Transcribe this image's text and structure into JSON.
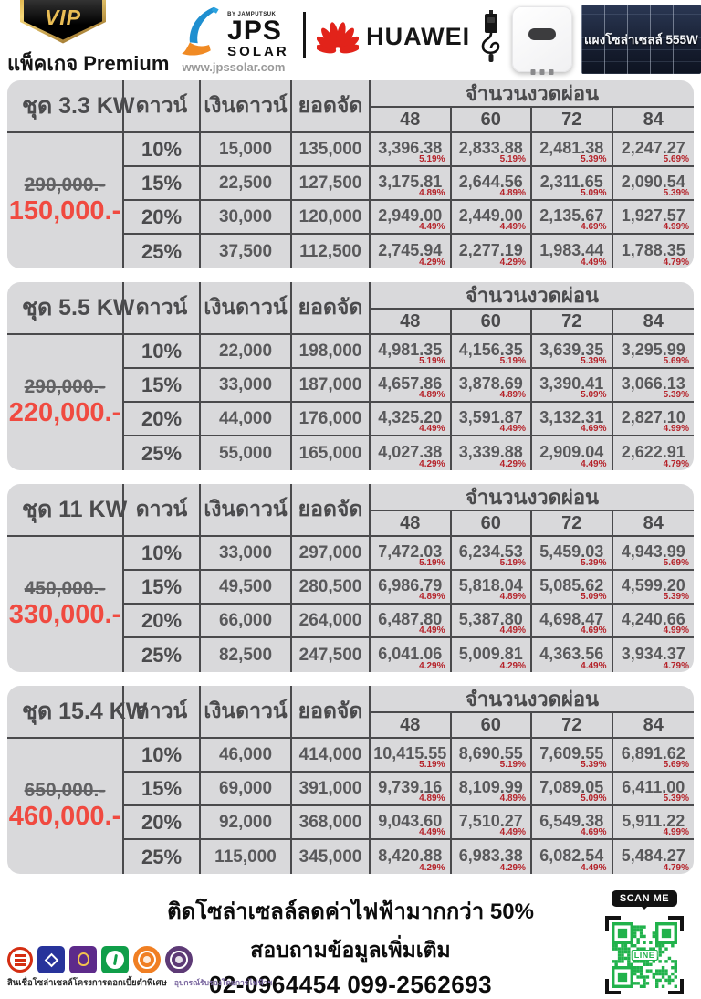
{
  "header": {
    "vip_badge": "VIP",
    "package_label": "แพ็คเกจ Premium",
    "jps": {
      "by": "BY JAMPUTSUK",
      "name": "JPS",
      "sub": "SOLAR",
      "website": "www.jpssolar.com"
    },
    "huawei": "HUAWEI",
    "panel_caption": "แผงโซล่าเซลล์ 555W"
  },
  "table_headers": {
    "down_pct": "ดาวน์",
    "down_amount": "เงินดาวน์",
    "financed": "ยอดจัด",
    "installments": "จำนวนงวดผ่อน",
    "terms": [
      "48",
      "60",
      "72",
      "84"
    ]
  },
  "tables": [
    {
      "name": "ชุด 3.3 KW",
      "old_price": "290,000.-",
      "price": "150,000.-",
      "rows": [
        {
          "down": "10%",
          "down_amount": "15,000",
          "financed": "135,000",
          "payments": [
            {
              "amount": "3,396.38",
              "rate": "5.19%"
            },
            {
              "amount": "2,833.88",
              "rate": "5.19%"
            },
            {
              "amount": "2,481.38",
              "rate": "5.39%"
            },
            {
              "amount": "2,247.27",
              "rate": "5.69%"
            }
          ]
        },
        {
          "down": "15%",
          "down_amount": "22,500",
          "financed": "127,500",
          "payments": [
            {
              "amount": "3,175.81",
              "rate": "4.89%"
            },
            {
              "amount": "2,644.56",
              "rate": "4.89%"
            },
            {
              "amount": "2,311.65",
              "rate": "5.09%"
            },
            {
              "amount": "2,090.54",
              "rate": "5.39%"
            }
          ]
        },
        {
          "down": "20%",
          "down_amount": "30,000",
          "financed": "120,000",
          "payments": [
            {
              "amount": "2,949.00",
              "rate": "4.49%"
            },
            {
              "amount": "2,449.00",
              "rate": "4.49%"
            },
            {
              "amount": "2,135.67",
              "rate": "4.69%"
            },
            {
              "amount": "1,927.57",
              "rate": "4.99%"
            }
          ]
        },
        {
          "down": "25%",
          "down_amount": "37,500",
          "financed": "112,500",
          "payments": [
            {
              "amount": "2,745.94",
              "rate": "4.29%"
            },
            {
              "amount": "2,277.19",
              "rate": "4.29%"
            },
            {
              "amount": "1,983.44",
              "rate": "4.49%"
            },
            {
              "amount": "1,788.35",
              "rate": "4.79%"
            }
          ]
        }
      ]
    },
    {
      "name": "ชุด 5.5 KW",
      "old_price": "290,000.-",
      "price": "220,000.-",
      "rows": [
        {
          "down": "10%",
          "down_amount": "22,000",
          "financed": "198,000",
          "payments": [
            {
              "amount": "4,981.35",
              "rate": "5.19%"
            },
            {
              "amount": "4,156.35",
              "rate": "5.19%"
            },
            {
              "amount": "3,639.35",
              "rate": "5.39%"
            },
            {
              "amount": "3,295.99",
              "rate": "5.69%"
            }
          ]
        },
        {
          "down": "15%",
          "down_amount": "33,000",
          "financed": "187,000",
          "payments": [
            {
              "amount": "4,657.86",
              "rate": "4.89%"
            },
            {
              "amount": "3,878.69",
              "rate": "4.89%"
            },
            {
              "amount": "3,390.41",
              "rate": "5.09%"
            },
            {
              "amount": "3,066.13",
              "rate": "5.39%"
            }
          ]
        },
        {
          "down": "20%",
          "down_amount": "44,000",
          "financed": "176,000",
          "payments": [
            {
              "amount": "4,325.20",
              "rate": "4.49%"
            },
            {
              "amount": "3,591.87",
              "rate": "4.49%"
            },
            {
              "amount": "3,132.31",
              "rate": "4.69%"
            },
            {
              "amount": "2,827.10",
              "rate": "4.99%"
            }
          ]
        },
        {
          "down": "25%",
          "down_amount": "55,000",
          "financed": "165,000",
          "payments": [
            {
              "amount": "4,027.38",
              "rate": "4.29%"
            },
            {
              "amount": "3,339.88",
              "rate": "4.29%"
            },
            {
              "amount": "2,909.04",
              "rate": "4.49%"
            },
            {
              "amount": "2,622.91",
              "rate": "4.79%"
            }
          ]
        }
      ]
    },
    {
      "name": "ชุด 11 KW",
      "old_price": "450,000.-",
      "price": "330,000.-",
      "rows": [
        {
          "down": "10%",
          "down_amount": "33,000",
          "financed": "297,000",
          "payments": [
            {
              "amount": "7,472.03",
              "rate": "5.19%"
            },
            {
              "amount": "6,234.53",
              "rate": "5.19%"
            },
            {
              "amount": "5,459.03",
              "rate": "5.39%"
            },
            {
              "amount": "4,943.99",
              "rate": "5.69%"
            }
          ]
        },
        {
          "down": "15%",
          "down_amount": "49,500",
          "financed": "280,500",
          "payments": [
            {
              "amount": "6,986.79",
              "rate": "4.89%"
            },
            {
              "amount": "5,818.04",
              "rate": "4.89%"
            },
            {
              "amount": "5,085.62",
              "rate": "5.09%"
            },
            {
              "amount": "4,599.20",
              "rate": "5.39%"
            }
          ]
        },
        {
          "down": "20%",
          "down_amount": "66,000",
          "financed": "264,000",
          "payments": [
            {
              "amount": "6,487.80",
              "rate": "4.49%"
            },
            {
              "amount": "5,387.80",
              "rate": "4.49%"
            },
            {
              "amount": "4,698.47",
              "rate": "4.69%"
            },
            {
              "amount": "4,240.66",
              "rate": "4.99%"
            }
          ]
        },
        {
          "down": "25%",
          "down_amount": "82,500",
          "financed": "247,500",
          "payments": [
            {
              "amount": "6,041.06",
              "rate": "4.29%"
            },
            {
              "amount": "5,009.81",
              "rate": "4.29%"
            },
            {
              "amount": "4,363.56",
              "rate": "4.49%"
            },
            {
              "amount": "3,934.37",
              "rate": "4.79%"
            }
          ]
        }
      ]
    },
    {
      "name": "ชุด 15.4 KW",
      "old_price": "650,000.-",
      "price": "460,000.-",
      "rows": [
        {
          "down": "10%",
          "down_amount": "46,000",
          "financed": "414,000",
          "payments": [
            {
              "amount": "10,415.55",
              "rate": "5.19%"
            },
            {
              "amount": "8,690.55",
              "rate": "5.19%"
            },
            {
              "amount": "7,609.55",
              "rate": "5.39%"
            },
            {
              "amount": "6,891.62",
              "rate": "5.69%"
            }
          ]
        },
        {
          "down": "15%",
          "down_amount": "69,000",
          "financed": "391,000",
          "payments": [
            {
              "amount": "9,739.16",
              "rate": "4.89%"
            },
            {
              "amount": "8,109.99",
              "rate": "4.89%"
            },
            {
              "amount": "7,089.05",
              "rate": "5.09%"
            },
            {
              "amount": "6,411.00",
              "rate": "5.39%"
            }
          ]
        },
        {
          "down": "20%",
          "down_amount": "92,000",
          "financed": "368,000",
          "payments": [
            {
              "amount": "9,043.60",
              "rate": "4.49%"
            },
            {
              "amount": "7,510.27",
              "rate": "4.49%"
            },
            {
              "amount": "6,549.38",
              "rate": "4.69%"
            },
            {
              "amount": "5,911.22",
              "rate": "4.99%"
            }
          ]
        },
        {
          "down": "25%",
          "down_amount": "115,000",
          "financed": "345,000",
          "payments": [
            {
              "amount": "8,420.88",
              "rate": "4.29%"
            },
            {
              "amount": "6,983.38",
              "rate": "4.29%"
            },
            {
              "amount": "6,082.54",
              "rate": "4.49%"
            },
            {
              "amount": "5,484.27",
              "rate": "4.79%"
            }
          ]
        }
      ]
    }
  ],
  "footer": {
    "line1": "ติดโซล่าเซลล์ลดค่าไฟฟ้ามากกว่า 50%",
    "line2": "สอบถามข้อมูลเพิ่มเติม",
    "phones": "02-0964454 099-2562693",
    "banks_caption": "สินเชื่อโซล่าเซลล์โครงการดอกเบี้ยต่ำพิเศษ",
    "cert_caption": "อุปกรณ์รับรองโดยการไฟฟ้าฯ",
    "scan_label": "SCAN ME",
    "line_label": "LINE"
  },
  "icons": {
    "bank_logos": [
      {
        "name": "icbc-bank-logo",
        "color": "#d42e12"
      },
      {
        "name": "bangkok-bank-logo",
        "color": "#27339b"
      },
      {
        "name": "scb-bank-logo",
        "color": "#5d2a8a"
      },
      {
        "name": "kasikorn-bank-logo",
        "color": "#109e49"
      },
      {
        "name": "pea-logo",
        "color": "#f07f23"
      },
      {
        "name": "mea-logo",
        "color": "#5d3a76"
      }
    ]
  },
  "colors": {
    "promo_red": "#f04a40",
    "rate_red": "#b5232a",
    "card_bg": "#d9d9db",
    "grid_line": "#4a4a4c",
    "line_green": "#21b24b"
  }
}
